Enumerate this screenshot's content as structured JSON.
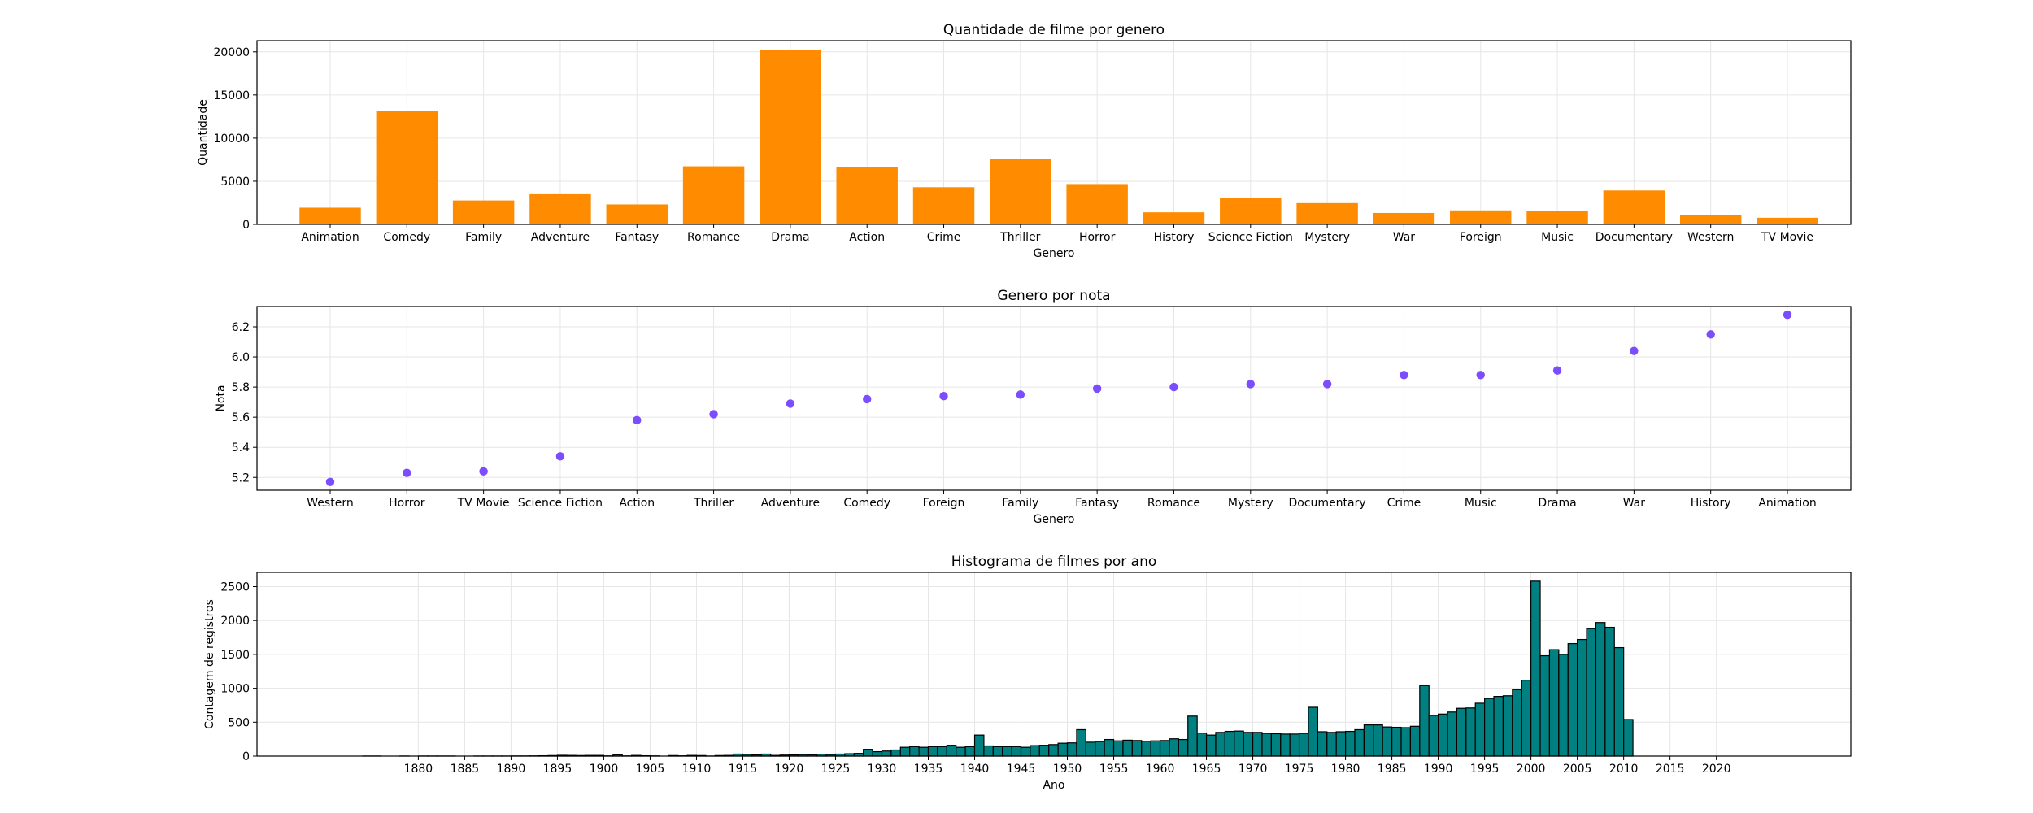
{
  "chart_data": [
    {
      "type": "bar",
      "title": "Quantidade de filme por genero",
      "xlabel": "Genero",
      "ylabel": "Quantidade",
      "categories": [
        "Animation",
        "Comedy",
        "Family",
        "Adventure",
        "Fantasy",
        "Romance",
        "Drama",
        "Action",
        "Crime",
        "Thriller",
        "Horror",
        "History",
        "Science Fiction",
        "Mystery",
        "War",
        "Foreign",
        "Music",
        "Documentary",
        "Western",
        "TV Movie"
      ],
      "values": [
        1935,
        13182,
        2770,
        3496,
        2313,
        6735,
        20265,
        6596,
        4307,
        7624,
        4673,
        1398,
        3049,
        2467,
        1323,
        1622,
        1598,
        3932,
        1042,
        767
      ],
      "ylim": [
        0,
        21300
      ],
      "yticks": [
        0,
        5000,
        10000,
        15000,
        20000
      ],
      "color": "#ff8c00",
      "grid": true
    },
    {
      "type": "scatter",
      "title": "Genero por nota",
      "xlabel": "Genero",
      "ylabel": "Nota",
      "categories": [
        "Western",
        "Horror",
        "TV Movie",
        "Science Fiction",
        "Action",
        "Thriller",
        "Adventure",
        "Comedy",
        "Foreign",
        "Family",
        "Fantasy",
        "Romance",
        "Mystery",
        "Documentary",
        "Crime",
        "Music",
        "Drama",
        "War",
        "History",
        "Animation"
      ],
      "values": [
        5.17,
        5.23,
        5.24,
        5.34,
        5.58,
        5.62,
        5.69,
        5.72,
        5.74,
        5.75,
        5.79,
        5.8,
        5.82,
        5.82,
        5.88,
        5.88,
        5.91,
        6.04,
        6.15,
        6.28
      ],
      "ylim": [
        5.115,
        6.335
      ],
      "yticks": [
        "5.2",
        "5.4",
        "5.6",
        "5.8",
        "6.0",
        "6.2"
      ],
      "color": "#7b4dff",
      "grid": true
    },
    {
      "type": "bar",
      "subtype": "histogram",
      "title": "Histograma de filmes por ano",
      "xlabel": "Ano",
      "ylabel": "Contagem de registros",
      "bin_start": 1874,
      "bin_width": 1,
      "counts": [
        1,
        1,
        0,
        0,
        1,
        0,
        1,
        1,
        1,
        1,
        0,
        0,
        1,
        1,
        1,
        1,
        2,
        2,
        3,
        5,
        8,
        12,
        10,
        8,
        10,
        10,
        3,
        20,
        3,
        10,
        5,
        3,
        0,
        8,
        4,
        10,
        8,
        1,
        8,
        10,
        30,
        25,
        18,
        30,
        10,
        15,
        18,
        22,
        20,
        28,
        22,
        30,
        35,
        40,
        100,
        65,
        75,
        90,
        130,
        140,
        130,
        140,
        140,
        160,
        130,
        140,
        310,
        150,
        140,
        140,
        140,
        130,
        155,
        160,
        170,
        190,
        195,
        390,
        205,
        215,
        245,
        225,
        235,
        230,
        220,
        225,
        230,
        255,
        245,
        590,
        340,
        310,
        350,
        365,
        370,
        350,
        350,
        335,
        330,
        325,
        325,
        335,
        720,
        360,
        350,
        360,
        365,
        390,
        460,
        460,
        430,
        425,
        420,
        440,
        1040,
        600,
        620,
        650,
        705,
        710,
        780,
        850,
        880,
        890,
        980,
        1120,
        2580,
        1480,
        1570,
        1500,
        1660,
        1720,
        1880,
        1970,
        1900,
        1600,
        540
      ],
      "xlim": [
        1862.6,
        2034.5
      ],
      "ylim": [
        0,
        2710
      ],
      "xticks": [
        "1880",
        "1885",
        "1890",
        "1895",
        "1900",
        "1905",
        "1910",
        "1915",
        "1920",
        "1925",
        "1930",
        "1935",
        "1940",
        "1945",
        "1950",
        "1955",
        "1960",
        "1965",
        "1970",
        "1975",
        "1980",
        "1985",
        "1990",
        "1995",
        "2000",
        "2005",
        "2010",
        "2015",
        "2020"
      ],
      "yticks": [
        "0",
        "500",
        "1000",
        "1500",
        "2000",
        "2500"
      ],
      "color": "#008080",
      "edgecolor": "#000000",
      "grid": true
    }
  ]
}
